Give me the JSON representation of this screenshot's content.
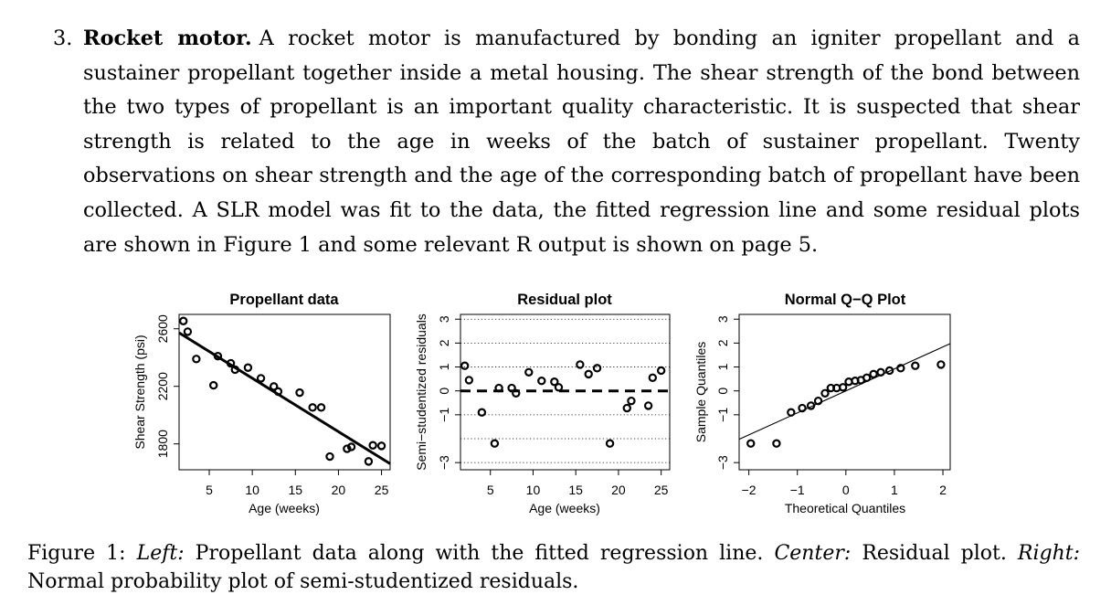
{
  "problem": {
    "number": "3.",
    "title": "Rocket motor.",
    "text": "A rocket motor is manufactured by bonding an igniter propellant and a sustainer propellant together inside a metal housing. The shear strength of the bond between the two types of propellant is an important quality characteristic. It is suspected that shear strength is related to the age in weeks of the batch of sustainer propellant. Twenty observations on shear strength and the age of the corresponding batch of propellant have been collected. A SLR model was fit to the data, the fitted regression line and some residual plots are shown in Figure 1 and some relevant R output is shown on page 5."
  },
  "chart_data": [
    {
      "type": "scatter",
      "title": "Propellant data",
      "xlabel": "Age (weeks)",
      "ylabel": "Shear Strength (psi)",
      "xlim": [
        1.5,
        26
      ],
      "ylim": [
        1620,
        2700
      ],
      "xticks": [
        5,
        10,
        15,
        20,
        25
      ],
      "yticks": [
        1800,
        2200,
        2600
      ],
      "points": [
        [
          2,
          2654
        ],
        [
          2.5,
          2580
        ],
        [
          3.5,
          2390
        ],
        [
          5.5,
          2207
        ],
        [
          6,
          2410
        ],
        [
          7.5,
          2360
        ],
        [
          8,
          2316
        ],
        [
          9.5,
          2330
        ],
        [
          11,
          2256
        ],
        [
          12.5,
          2199
        ],
        [
          13,
          2164
        ],
        [
          15.5,
          2156
        ],
        [
          17,
          2053
        ],
        [
          18,
          2053
        ],
        [
          19,
          1712
        ],
        [
          21,
          1766
        ],
        [
          21.5,
          1779
        ],
        [
          23.5,
          1678
        ],
        [
          24,
          1790
        ],
        [
          25,
          1786
        ]
      ],
      "fit_line": {
        "intercept": 2627.8,
        "slope": -37.15
      }
    },
    {
      "type": "scatter",
      "title": "Residual plot",
      "xlabel": "Age (weeks)",
      "ylabel": "Semi−studentized residuals",
      "xlim": [
        1.5,
        26
      ],
      "ylim": [
        -3.3,
        3.2
      ],
      "xticks": [
        5,
        10,
        15,
        20,
        25
      ],
      "yticks": [
        -3,
        -1,
        0,
        1,
        2,
        3
      ],
      "hlines": [
        -3,
        -2,
        -1,
        1,
        2,
        3
      ],
      "zero_line": 0,
      "points": [
        [
          2,
          1.05
        ],
        [
          2.5,
          0.45
        ],
        [
          4,
          -0.9
        ],
        [
          5.5,
          -2.2
        ],
        [
          6,
          0.12
        ],
        [
          7.5,
          0.12
        ],
        [
          8,
          -0.1
        ],
        [
          9.5,
          0.78
        ],
        [
          11,
          0.42
        ],
        [
          12.5,
          0.38
        ],
        [
          13,
          0.15
        ],
        [
          15.5,
          1.1
        ],
        [
          16.5,
          0.7
        ],
        [
          17.5,
          0.95
        ],
        [
          19,
          -2.2
        ],
        [
          21,
          -0.72
        ],
        [
          21.5,
          -0.42
        ],
        [
          23.5,
          -0.62
        ],
        [
          24,
          0.55
        ],
        [
          25,
          0.85
        ]
      ]
    },
    {
      "type": "scatter",
      "title": "Normal Q−Q Plot",
      "xlabel": "Theoretical Quantiles",
      "ylabel": "Sample Quantiles",
      "xlim": [
        -2.2,
        2.15
      ],
      "ylim": [
        -3.3,
        3.2
      ],
      "xticks": [
        -2,
        -1,
        0,
        1,
        2
      ],
      "yticks": [
        -3,
        -1,
        0,
        1,
        2,
        3
      ],
      "points": [
        [
          -1.96,
          -2.2
        ],
        [
          -1.43,
          -2.2
        ],
        [
          -1.13,
          -0.9
        ],
        [
          -0.9,
          -0.72
        ],
        [
          -0.72,
          -0.62
        ],
        [
          -0.57,
          -0.42
        ],
        [
          -0.43,
          -0.1
        ],
        [
          -0.31,
          0.12
        ],
        [
          -0.19,
          0.12
        ],
        [
          -0.06,
          0.15
        ],
        [
          0.06,
          0.38
        ],
        [
          0.19,
          0.42
        ],
        [
          0.31,
          0.45
        ],
        [
          0.43,
          0.55
        ],
        [
          0.57,
          0.7
        ],
        [
          0.72,
          0.78
        ],
        [
          0.9,
          0.85
        ],
        [
          1.13,
          0.95
        ],
        [
          1.43,
          1.05
        ],
        [
          1.96,
          1.1
        ]
      ],
      "ref_line": {
        "intercept": 0.0,
        "slope": 0.92
      }
    }
  ],
  "tick_labels_yaxis": {
    "plot1": [
      "1800",
      "2200",
      "2600"
    ],
    "plot23": [
      "−3",
      "−1",
      "0",
      "1",
      "2",
      "3"
    ]
  },
  "caption": {
    "prefix": "Figure 1:",
    "left_label": "Left:",
    "left_text": "Propellant data along with the fitted regression line.",
    "center_label": "Center:",
    "center_text": "Residual plot.",
    "right_label": "Right:",
    "right_text": "Normal probability plot of semi-studentized residuals."
  }
}
